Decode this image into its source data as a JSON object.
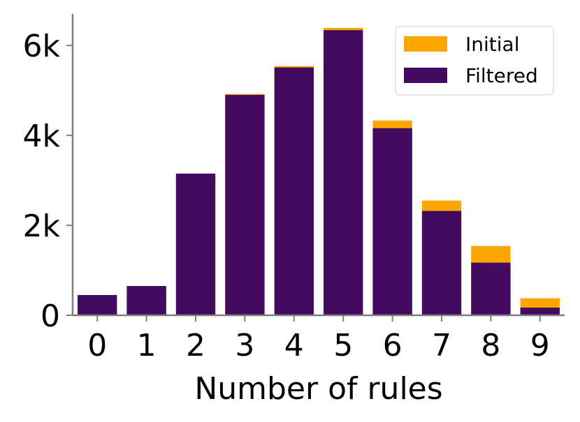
{
  "chart_data": {
    "type": "bar",
    "stacked": "overlay",
    "title": "",
    "xlabel": "Number of rules",
    "ylabel": "",
    "categories": [
      "0",
      "1",
      "2",
      "3",
      "4",
      "5",
      "6",
      "7",
      "8",
      "9"
    ],
    "series": [
      {
        "name": "Initial",
        "color": "#FFA500",
        "values": [
          450,
          650,
          3150,
          4920,
          5540,
          6390,
          4330,
          2550,
          1540,
          380
        ]
      },
      {
        "name": "Filtered",
        "color": "#440A61",
        "values": [
          450,
          650,
          3150,
          4900,
          5510,
          6340,
          4160,
          2320,
          1170,
          170
        ]
      }
    ],
    "ylim": [
      0,
      6700
    ],
    "yticks": [
      {
        "value": 0,
        "label": "0"
      },
      {
        "value": 2000,
        "label": "2k"
      },
      {
        "value": 4000,
        "label": "4k"
      },
      {
        "value": 6000,
        "label": "6k"
      }
    ],
    "grid": false,
    "legend_position": "top-right"
  }
}
